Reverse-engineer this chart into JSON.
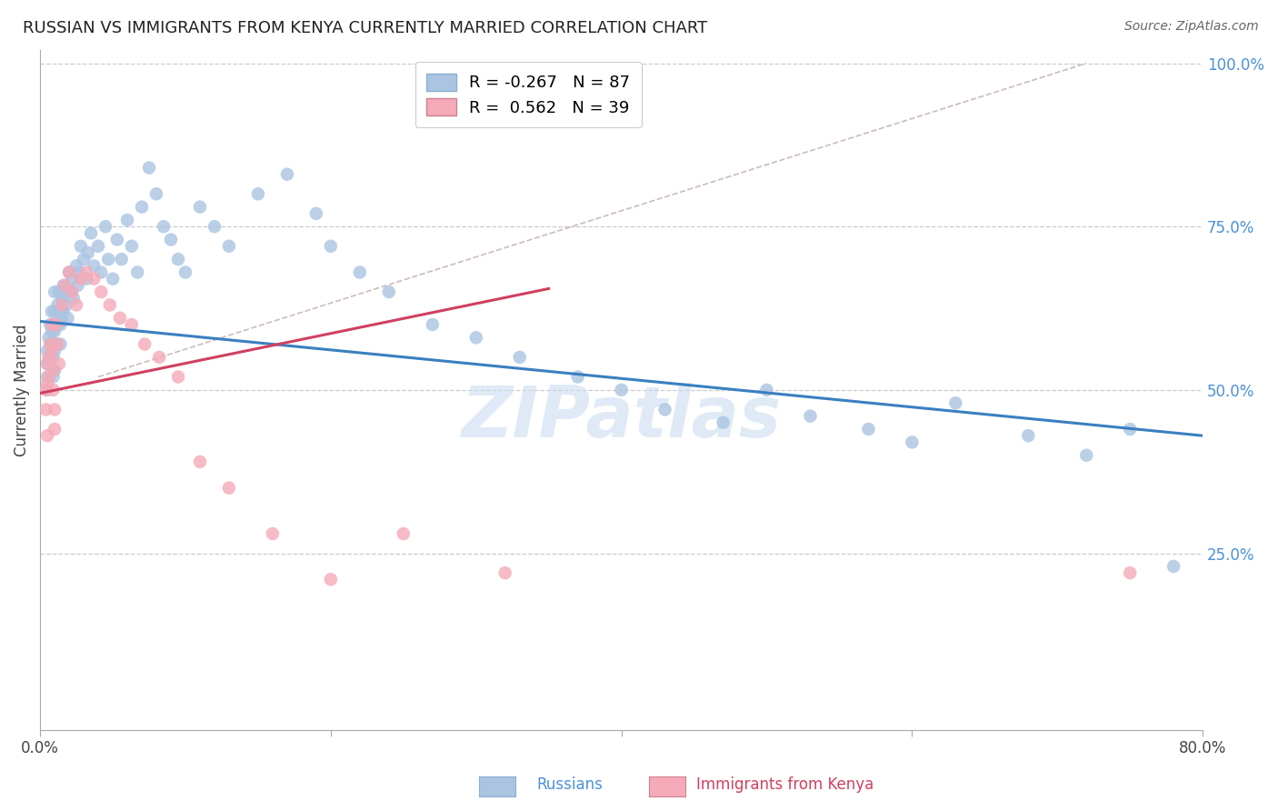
{
  "title": "RUSSIAN VS IMMIGRANTS FROM KENYA CURRENTLY MARRIED CORRELATION CHART",
  "source": "Source: ZipAtlas.com",
  "ylabel": "Currently Married",
  "x_min": 0.0,
  "x_max": 0.8,
  "y_min": 0.0,
  "y_max": 1.0,
  "watermark": "ZIPatlas",
  "blue_color": "#aac4e2",
  "pink_color": "#f4aab8",
  "blue_line_color": "#3a7fc1",
  "pink_line_color": "#d04060",
  "legend_blue_r": "-0.267",
  "legend_blue_n": "87",
  "legend_pink_r": "0.562",
  "legend_pink_n": "39",
  "blue_line_x0": 0.0,
  "blue_line_y0": 0.605,
  "blue_line_x1": 0.8,
  "blue_line_y1": 0.43,
  "pink_line_x0": 0.0,
  "pink_line_y0": 0.495,
  "pink_line_x1": 0.35,
  "pink_line_y1": 0.655,
  "dash_line_x0": 0.04,
  "dash_line_y0": 0.52,
  "dash_line_x1": 0.72,
  "dash_line_y1": 1.0,
  "russians_x": [
    0.005,
    0.005,
    0.005,
    0.005,
    0.006,
    0.006,
    0.007,
    0.007,
    0.008,
    0.008,
    0.009,
    0.009,
    0.01,
    0.01,
    0.01,
    0.01,
    0.01,
    0.011,
    0.011,
    0.012,
    0.012,
    0.013,
    0.013,
    0.014,
    0.014,
    0.015,
    0.015,
    0.016,
    0.016,
    0.017,
    0.018,
    0.019,
    0.02,
    0.021,
    0.022,
    0.023,
    0.025,
    0.026,
    0.027,
    0.028,
    0.03,
    0.032,
    0.033,
    0.035,
    0.037,
    0.04,
    0.042,
    0.045,
    0.047,
    0.05,
    0.053,
    0.056,
    0.06,
    0.063,
    0.067,
    0.07,
    0.075,
    0.08,
    0.085,
    0.09,
    0.095,
    0.1,
    0.11,
    0.12,
    0.13,
    0.15,
    0.17,
    0.19,
    0.2,
    0.22,
    0.24,
    0.27,
    0.3,
    0.33,
    0.37,
    0.4,
    0.43,
    0.47,
    0.5,
    0.53,
    0.57,
    0.6,
    0.63,
    0.68,
    0.72,
    0.75,
    0.78
  ],
  "russians_y": [
    0.56,
    0.54,
    0.52,
    0.5,
    0.58,
    0.55,
    0.6,
    0.57,
    0.62,
    0.59,
    0.55,
    0.52,
    0.65,
    0.62,
    0.59,
    0.56,
    0.53,
    0.6,
    0.57,
    0.63,
    0.6,
    0.65,
    0.62,
    0.6,
    0.57,
    0.64,
    0.61,
    0.66,
    0.62,
    0.65,
    0.63,
    0.61,
    0.68,
    0.65,
    0.67,
    0.64,
    0.69,
    0.66,
    0.68,
    0.72,
    0.7,
    0.67,
    0.71,
    0.74,
    0.69,
    0.72,
    0.68,
    0.75,
    0.7,
    0.67,
    0.73,
    0.7,
    0.76,
    0.72,
    0.68,
    0.78,
    0.84,
    0.8,
    0.75,
    0.73,
    0.7,
    0.68,
    0.78,
    0.75,
    0.72,
    0.8,
    0.83,
    0.77,
    0.72,
    0.68,
    0.65,
    0.6,
    0.58,
    0.55,
    0.52,
    0.5,
    0.47,
    0.45,
    0.5,
    0.46,
    0.44,
    0.42,
    0.48,
    0.43,
    0.4,
    0.44,
    0.23
  ],
  "kenya_x": [
    0.004,
    0.004,
    0.005,
    0.005,
    0.005,
    0.006,
    0.006,
    0.007,
    0.008,
    0.008,
    0.009,
    0.009,
    0.01,
    0.01,
    0.011,
    0.012,
    0.013,
    0.015,
    0.017,
    0.02,
    0.022,
    0.025,
    0.028,
    0.032,
    0.037,
    0.042,
    0.048,
    0.055,
    0.063,
    0.072,
    0.082,
    0.095,
    0.11,
    0.13,
    0.16,
    0.2,
    0.25,
    0.32,
    0.75
  ],
  "kenya_y": [
    0.5,
    0.47,
    0.54,
    0.51,
    0.43,
    0.55,
    0.52,
    0.57,
    0.6,
    0.56,
    0.53,
    0.5,
    0.47,
    0.44,
    0.6,
    0.57,
    0.54,
    0.63,
    0.66,
    0.68,
    0.65,
    0.63,
    0.67,
    0.68,
    0.67,
    0.65,
    0.63,
    0.61,
    0.6,
    0.57,
    0.55,
    0.52,
    0.39,
    0.35,
    0.28,
    0.21,
    0.28,
    0.22,
    0.22
  ]
}
